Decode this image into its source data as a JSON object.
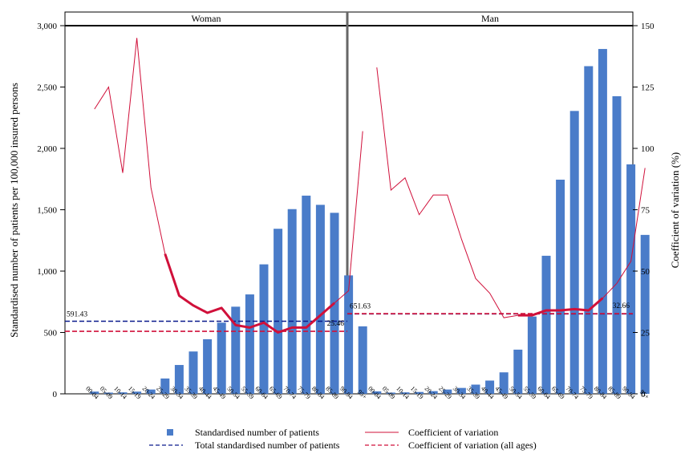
{
  "chart_data": {
    "type": "bar",
    "ylabel": "Standardised number of patients per 100,000 insured persons",
    "y2label": "Coefficient of variation (%)",
    "ylim": [
      0,
      3000
    ],
    "y2lim": [
      0,
      150
    ],
    "yticks": [
      "0",
      "500",
      "1,000",
      "1,500",
      "2,000",
      "2,500",
      "3,000"
    ],
    "y2ticks": [
      "0",
      "25",
      "50",
      "75",
      "100",
      "125",
      "150"
    ],
    "categories": [
      "00-04",
      "05-09",
      "10-14",
      "15-19",
      "20-24",
      "25-29",
      "30-34",
      "35-39",
      "40-44",
      "45-49",
      "50-54",
      "55-59",
      "60-64",
      "65-69",
      "70-74",
      "75-79",
      "80-84",
      "85-89",
      "90-94",
      "95+"
    ],
    "grid": false,
    "legend_position": "bottom",
    "legend": {
      "bars": "Standardised number of patients",
      "cv": "Coefficient of variation",
      "total": "Total standardised number of patients",
      "cv_all": "Coefficient of variation (all ages)"
    },
    "colors": {
      "bars": "#4a7cc9",
      "cv": "#d0103a",
      "total": "#0a1a8c",
      "cv_all": "#d0103a"
    },
    "panels": [
      {
        "title": "Woman",
        "values": [
          18,
          10,
          12,
          18,
          35,
          125,
          235,
          345,
          445,
          580,
          710,
          810,
          1055,
          1345,
          1505,
          1615,
          1540,
          1475,
          965,
          550
        ],
        "cv": [
          116,
          125,
          90,
          145,
          84,
          57,
          40,
          36,
          33,
          35,
          28,
          27,
          29,
          25,
          27,
          27,
          32,
          37,
          42,
          107
        ],
        "cv_bold_from": 5,
        "cv_bold_to": 17,
        "total": 591.43,
        "total_label": "591.43",
        "cv_all": 25.46,
        "cv_all_label": "25.46"
      },
      {
        "title": "Man",
        "values": [
          20,
          10,
          12,
          15,
          22,
          35,
          48,
          75,
          108,
          175,
          360,
          630,
          1125,
          1745,
          2305,
          2670,
          2810,
          2425,
          1870,
          1295
        ],
        "cv": [
          133,
          83,
          88,
          73,
          81,
          81,
          63,
          47,
          41,
          31,
          32,
          32,
          34,
          34,
          34.5,
          34,
          39,
          45,
          54,
          92
        ],
        "cv_bold_from": 10,
        "cv_bold_to": 16,
        "total": 651.63,
        "total_label": "651.63",
        "cv_all": 32.66,
        "cv_all_label": "32.66"
      }
    ]
  }
}
